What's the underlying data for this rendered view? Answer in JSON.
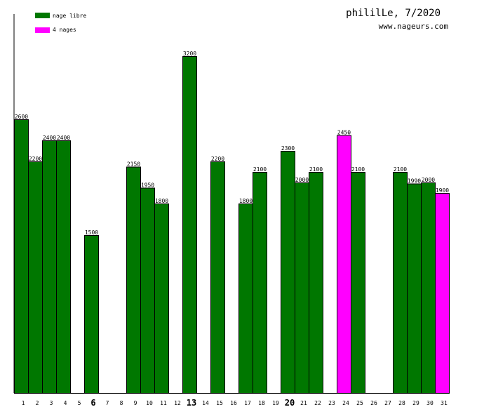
{
  "header": {
    "title": "phililLe, 7/2020",
    "site": "www.nageurs.com"
  },
  "legend": [
    {
      "label": "nage libre",
      "color": "#007700"
    },
    {
      "label": "4 nages",
      "color": "#ff00ff"
    }
  ],
  "chart_data": {
    "type": "bar",
    "title": "phililLe, 7/2020",
    "xlabel": "",
    "ylabel": "",
    "ylim": [
      0,
      3200
    ],
    "grid": false,
    "legend_position": "top-left",
    "categories": [
      "1",
      "2",
      "3",
      "4",
      "5",
      "6",
      "7",
      "8",
      "9",
      "10",
      "11",
      "12",
      "13",
      "14",
      "15",
      "16",
      "17",
      "18",
      "19",
      "20",
      "21",
      "22",
      "23",
      "24",
      "25",
      "26",
      "27",
      "28",
      "29",
      "30",
      "31"
    ],
    "highlighted_categories": [
      "6",
      "13",
      "20"
    ],
    "series": [
      {
        "name": "nage libre",
        "color": "#007700",
        "values": [
          2600,
          2200,
          2400,
          2400,
          null,
          1500,
          null,
          null,
          2150,
          1950,
          1800,
          null,
          3200,
          null,
          2200,
          null,
          1800,
          2100,
          null,
          2300,
          2000,
          2100,
          null,
          null,
          2100,
          null,
          null,
          2100,
          1990,
          2000,
          null
        ]
      },
      {
        "name": "4 nages",
        "color": "#ff00ff",
        "values": [
          null,
          null,
          null,
          null,
          null,
          null,
          null,
          null,
          null,
          null,
          null,
          null,
          null,
          null,
          null,
          null,
          null,
          null,
          null,
          null,
          null,
          null,
          null,
          2450,
          null,
          null,
          null,
          null,
          null,
          null,
          1900
        ]
      }
    ]
  }
}
